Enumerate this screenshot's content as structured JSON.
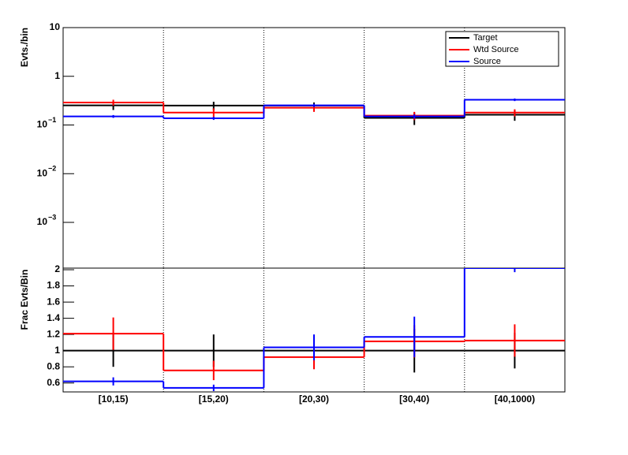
{
  "chart_data": [
    {
      "type": "step",
      "y_label": "Evts./bin",
      "log_y": true,
      "ylim": [
        0.000115,
        10
      ],
      "yticks": [
        {
          "value": 10,
          "label": "10"
        },
        {
          "value": 1,
          "label": "1"
        },
        {
          "value": 0.1,
          "label": "10",
          "exponent": "−1"
        },
        {
          "value": 0.01,
          "label": "10",
          "exponent": "−2"
        },
        {
          "value": 0.001,
          "label": "10",
          "exponent": "−3"
        }
      ],
      "legend": "top-right",
      "series": [
        {
          "name": "Target",
          "color": "#000000",
          "values": [
            0.253,
            0.25,
            0.25,
            0.14,
            0.162
          ],
          "errors": [
            0.05,
            0.05,
            0.04,
            0.04,
            0.04
          ]
        },
        {
          "name": "Wtd Source",
          "color": "#ff0000",
          "values": [
            0.29,
            0.18,
            0.226,
            0.156,
            0.18
          ],
          "errors": [
            0.04,
            0.04,
            0.04,
            0.03,
            0.03
          ]
        },
        {
          "name": "Source",
          "color": "#0000ff",
          "values": [
            0.15,
            0.137,
            0.253,
            0.15,
            0.33
          ],
          "errors": [
            0.01,
            0.01,
            0.02,
            0.015,
            0.02
          ]
        }
      ]
    },
    {
      "type": "step",
      "y_label": "Frac Evts/Bin",
      "categories": [
        "[10,15)",
        "[15,20)",
        "[20,30)",
        "[30,40)",
        "[40,1000)"
      ],
      "ylim": [
        0.49,
        2.02
      ],
      "yticks": [
        0.6,
        0.8,
        1,
        1.2,
        1.4,
        1.6,
        1.8,
        2
      ],
      "series": [
        {
          "color": "#000000",
          "values": [
            1,
            1,
            1,
            1,
            1
          ],
          "errors": [
            0.2,
            0.2,
            0.16,
            0.27,
            0.22
          ]
        },
        {
          "color": "#ff0000",
          "values": [
            1.21,
            0.755,
            0.92,
            1.115,
            1.125
          ],
          "errors": [
            0.2,
            0.12,
            0.15,
            0.2,
            0.2
          ]
        },
        {
          "color": "#0000ff",
          "values": [
            0.62,
            0.54,
            1.04,
            1.17,
            2.02
          ],
          "errors": [
            0.05,
            0.04,
            0.16,
            0.25,
            0.05
          ]
        }
      ]
    }
  ]
}
